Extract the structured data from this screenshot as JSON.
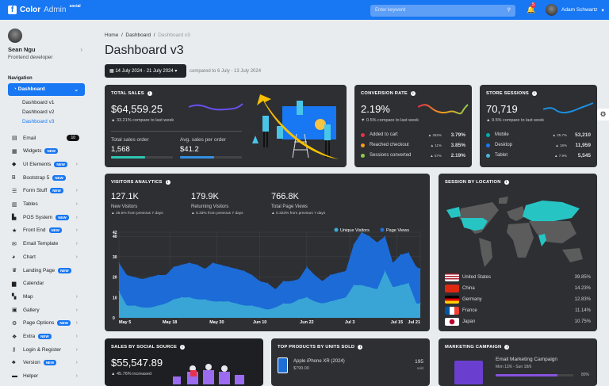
{
  "header": {
    "brand": "Color",
    "brand_light": "Admin",
    "brand_sup": "social",
    "search_placeholder": "Enter keyword",
    "notif_count": "5",
    "user": "Adam Schwartz",
    "brand_color": "#1877f2"
  },
  "sidebar": {
    "name": "Sean Ngu",
    "role": "Frontend developer",
    "nav_heading": "Navigation",
    "active": "Dashboard",
    "sub": [
      "Dashboard v1",
      "Dashboard v2",
      "Dashboard v3"
    ],
    "items": [
      {
        "label": "Email",
        "icon": "inbox-icon",
        "count": "10"
      },
      {
        "label": "Widgets",
        "icon": "widgets-icon",
        "badge": "NEW"
      },
      {
        "label": "UI Elements",
        "icon": "gem-icon",
        "badge": "NEW",
        "arrow": true
      },
      {
        "label": "Bootstrap 5",
        "icon": "bootstrap-icon",
        "badge": "NEW"
      },
      {
        "label": "Form Stuff",
        "icon": "list-icon",
        "badge": "NEW",
        "arrow": true
      },
      {
        "label": "Tables",
        "icon": "table-icon",
        "arrow": true
      },
      {
        "label": "POS System",
        "icon": "cash-register-icon",
        "badge": "NEW",
        "arrow": true
      },
      {
        "label": "Front End",
        "icon": "star-icon",
        "badge": "NEW",
        "arrow": true
      },
      {
        "label": "Email Template",
        "icon": "envelope-icon",
        "arrow": true
      },
      {
        "label": "Chart",
        "icon": "pie-chart-icon",
        "arrow": true
      },
      {
        "label": "Landing Page",
        "icon": "crown-icon",
        "badge": "NEW"
      },
      {
        "label": "Calendar",
        "icon": "calendar-icon"
      },
      {
        "label": "Map",
        "icon": "map-icon",
        "arrow": true
      },
      {
        "label": "Gallery",
        "icon": "image-icon",
        "arrow": true
      },
      {
        "label": "Page Options",
        "icon": "cogs-icon",
        "badge": "NEW",
        "arrow": true
      },
      {
        "label": "Extra",
        "icon": "gift-icon",
        "badge": "NEW",
        "arrow": true
      },
      {
        "label": "Login & Register",
        "icon": "key-icon",
        "arrow": true
      },
      {
        "label": "Version",
        "icon": "shapes-icon",
        "badge": "NEW",
        "arrow": true
      },
      {
        "label": "Helper",
        "icon": "briefcase-icon",
        "arrow": true
      }
    ]
  },
  "page": {
    "crumbs": [
      "Home",
      "Dashboard",
      "Dashboard v3"
    ],
    "title": "Dashboard v3",
    "date_range": "14 July 2024 - 21 July 2024",
    "compare": "compared to 6 July - 13 July 2024"
  },
  "total_sales": {
    "title": "TOTAL SALES",
    "value": "$64,559.25",
    "change": "33.21% compare to last week",
    "orders_label": "Total sales order",
    "orders": "1,568",
    "orders_progress": 55,
    "avg_label": "Avg. sales per order",
    "avg": "$41.2",
    "avg_progress": 55
  },
  "conversion": {
    "title": "CONVERSION RATE",
    "value": "2.19%",
    "change": "0.5% compare to last week",
    "rows": [
      {
        "label": "Added to cart",
        "pct": "262%",
        "value": "3.79%",
        "color": "#e5334b"
      },
      {
        "label": "Reached checkout",
        "pct": "11%",
        "value": "3.85%",
        "color": "#f59c1a"
      },
      {
        "label": "Sessions converted",
        "pct": "57%",
        "value": "2.19%",
        "color": "#90ca4b"
      }
    ]
  },
  "sessions": {
    "title": "STORE SESSIONS",
    "value": "70,719",
    "change": "9.5% compare to last week",
    "rows": [
      {
        "label": "Mobile",
        "pct": "25.7%",
        "value": "53,210",
        "color": "#00acac"
      },
      {
        "label": "Desktop",
        "pct": "16%",
        "value": "11,959",
        "color": "#1877f2"
      },
      {
        "label": "Tablet",
        "pct": "7.9%",
        "value": "5,545",
        "color": "#49b6d6"
      }
    ]
  },
  "visitors": {
    "title": "VISITORS ANALYTICS",
    "stats": [
      {
        "value": "127.1K",
        "label": "New Visitors",
        "change": "25.5% from previous 7 days"
      },
      {
        "value": "179.9K",
        "label": "Returning Visitors",
        "change": "5.33% from previous 7 days"
      },
      {
        "value": "766.8K",
        "label": "Total Page Views",
        "change": "0.323% from previous 7 days"
      }
    ]
  },
  "chart_data": {
    "type": "area",
    "legend": "top-right",
    "ylim": [
      0,
      42
    ],
    "yticks": [
      "0",
      "10",
      "20",
      "30",
      "40",
      "42"
    ],
    "xticks": [
      "May 5",
      "May 18",
      "May 30",
      "Jun 10",
      "Jun 22",
      "Jul 3",
      "Jul 15",
      "Jul 21"
    ],
    "x": [
      "May 5",
      "May 7",
      "May 9",
      "May 11",
      "May 13",
      "May 15",
      "May 17",
      "May 19",
      "May 21",
      "May 23",
      "May 25",
      "May 27",
      "May 29",
      "May 31",
      "Jun 2",
      "Jun 4",
      "Jun 6",
      "Jun 8",
      "Jun 10",
      "Jun 12",
      "Jun 14",
      "Jun 16",
      "Jun 18",
      "Jun 20",
      "Jun 22",
      "Jun 24",
      "Jun 26",
      "Jun 28",
      "Jun 30",
      "Jul 2",
      "Jul 4",
      "Jul 6",
      "Jul 8",
      "Jul 10",
      "Jul 12",
      "Jul 14",
      "Jul 16",
      "Jul 18",
      "Jul 20",
      "Jul 21"
    ],
    "series": [
      {
        "name": "Unique Visitors",
        "color": "#3dacd6",
        "values": [
          13,
          6,
          6,
          5,
          5,
          6,
          7,
          9,
          10,
          10,
          9,
          9,
          8,
          8,
          8,
          7,
          6,
          6,
          5,
          4,
          5,
          7,
          7,
          9,
          10,
          8,
          7,
          8,
          9,
          10,
          16,
          16,
          15,
          14,
          23,
          15,
          16,
          17,
          7,
          7
        ]
      },
      {
        "name": "Page Views",
        "color": "#1b6fe0",
        "values": [
          27,
          21,
          20,
          19,
          20,
          21,
          21,
          25,
          26,
          27,
          26,
          24,
          27,
          26,
          25,
          24,
          23,
          21,
          18,
          17,
          14,
          18,
          18,
          19,
          25,
          21,
          18,
          21,
          22,
          23,
          36,
          42,
          40,
          37,
          40,
          27,
          31,
          32,
          25,
          24
        ]
      }
    ]
  },
  "location": {
    "title": "SESSION BY LOCATION",
    "rows": [
      {
        "country": "United States",
        "pct": "39.85%"
      },
      {
        "country": "China",
        "pct": "14.23%"
      },
      {
        "country": "Germany",
        "pct": "12.83%"
      },
      {
        "country": "France",
        "pct": "11.14%"
      },
      {
        "country": "Japan",
        "pct": "10.75%"
      }
    ]
  },
  "social": {
    "title": "SALES BY SOCIAL SOURCE",
    "value": "$55,547.89",
    "change": "45.76% increased"
  },
  "products": {
    "title": "TOP PRODUCTS BY UNITS SOLD",
    "items": [
      {
        "name": "Apple iPhone XR (2024)",
        "price": "$799.00",
        "sold": "195",
        "sold_label": "sold"
      }
    ]
  },
  "marketing": {
    "title": "MARKETING CAMPAIGN",
    "items": [
      {
        "name": "Email Marketing Campaign",
        "dates": "Mon 12/6 - Sun 18/6",
        "progress": 80,
        "progress_label": "80%"
      }
    ]
  }
}
